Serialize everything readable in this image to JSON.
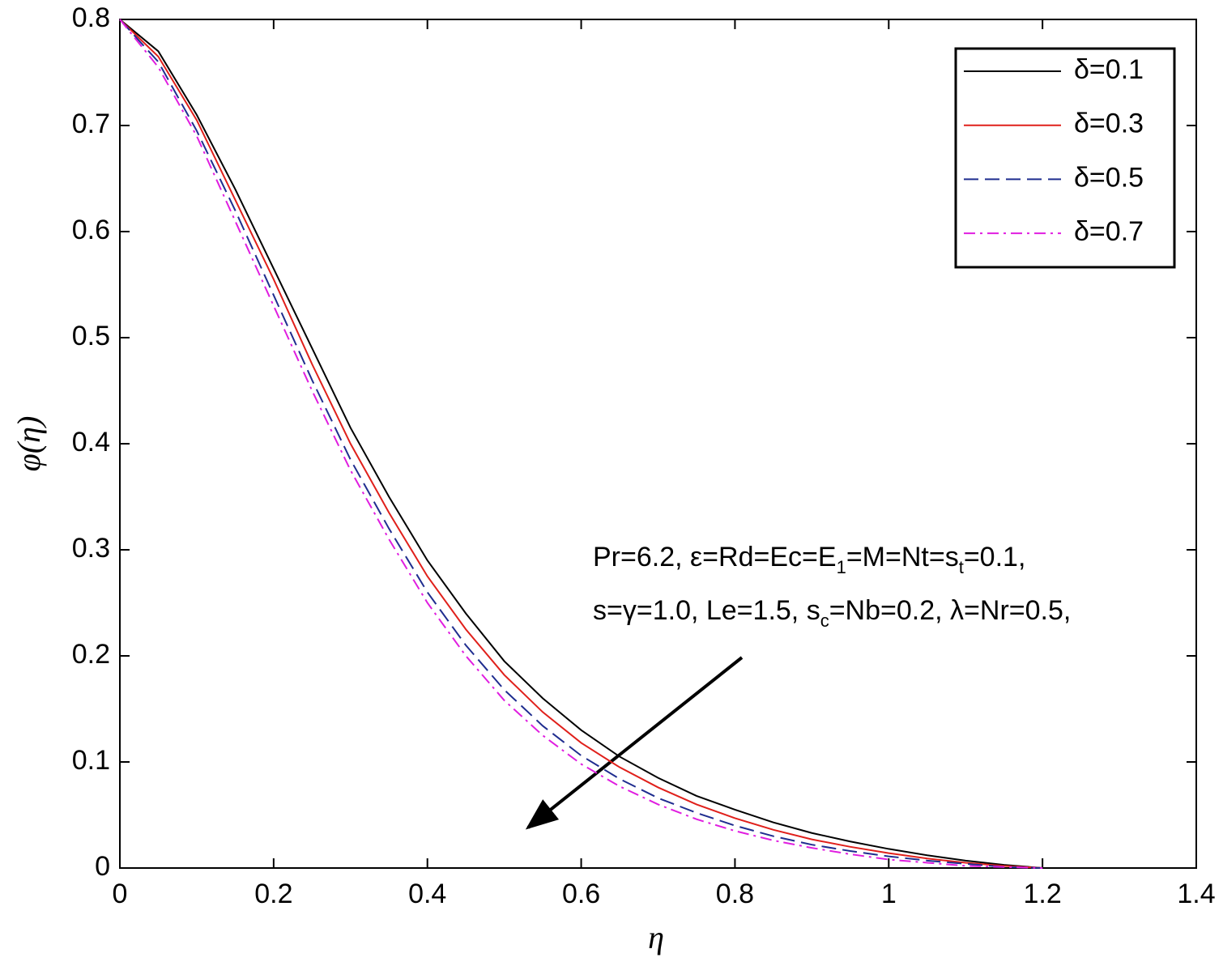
{
  "chart_data": {
    "type": "line",
    "xlabel": "η",
    "ylabel": "φ(η)",
    "x": [
      0,
      0.05,
      0.1,
      0.15,
      0.2,
      0.25,
      0.3,
      0.35,
      0.4,
      0.45,
      0.5,
      0.55,
      0.6,
      0.65,
      0.7,
      0.75,
      0.8,
      0.85,
      0.9,
      0.95,
      1.0,
      1.05,
      1.1,
      1.15,
      1.2
    ],
    "series": [
      {
        "name": "δ=0.1",
        "color": "#000000",
        "dash": "solid",
        "values": [
          0.8,
          0.77,
          0.71,
          0.64,
          0.565,
          0.49,
          0.415,
          0.35,
          0.29,
          0.24,
          0.195,
          0.16,
          0.13,
          0.105,
          0.085,
          0.068,
          0.055,
          0.043,
          0.033,
          0.025,
          0.018,
          0.012,
          0.007,
          0.003,
          0
        ]
      },
      {
        "name": "δ=0.3",
        "color": "#e0201b",
        "dash": "solid",
        "values": [
          0.8,
          0.765,
          0.705,
          0.63,
          0.555,
          0.475,
          0.4,
          0.335,
          0.275,
          0.225,
          0.182,
          0.147,
          0.118,
          0.095,
          0.076,
          0.06,
          0.047,
          0.036,
          0.027,
          0.02,
          0.014,
          0.009,
          0.005,
          0.002,
          0
        ]
      },
      {
        "name": "δ=0.5",
        "color": "#1f2d8f",
        "dash": "dashed",
        "values": [
          0.8,
          0.76,
          0.695,
          0.62,
          0.54,
          0.46,
          0.385,
          0.32,
          0.26,
          0.21,
          0.168,
          0.134,
          0.106,
          0.084,
          0.066,
          0.052,
          0.04,
          0.03,
          0.022,
          0.016,
          0.011,
          0.007,
          0.004,
          0.001,
          0
        ]
      },
      {
        "name": "δ=0.7",
        "color": "#e01ee0",
        "dash": "dashdot",
        "values": [
          0.8,
          0.755,
          0.69,
          0.61,
          0.53,
          0.45,
          0.375,
          0.31,
          0.25,
          0.2,
          0.158,
          0.125,
          0.098,
          0.077,
          0.06,
          0.046,
          0.035,
          0.026,
          0.019,
          0.013,
          0.008,
          0.005,
          0.002,
          0.001,
          0
        ]
      }
    ],
    "xlim": [
      0,
      1.4
    ],
    "xticks": [
      0,
      0.2,
      0.4,
      0.6,
      0.8,
      1,
      1.2,
      1.4
    ],
    "ylim": [
      0,
      0.8
    ],
    "yticks": [
      0,
      0.1,
      0.2,
      0.3,
      0.4,
      0.5,
      0.6,
      0.7,
      0.8
    ],
    "legend": "upper right",
    "annotation": [
      [
        "Pr=6.2, ε=Rd=Ec=E",
        "1",
        "=M=Nt=s",
        "t",
        "=0.1,"
      ],
      [
        "s=γ=1.0, Le=1.5, s",
        "c",
        "=Nb=0.2, λ=Nr=0.5,"
      ]
    ]
  }
}
